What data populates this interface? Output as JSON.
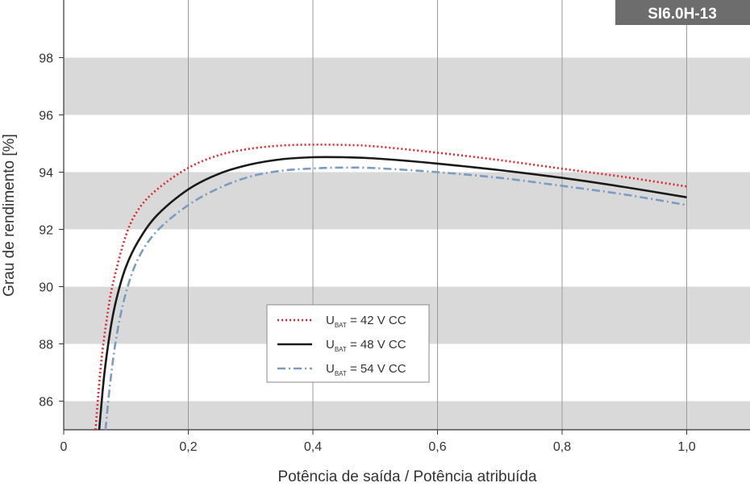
{
  "badge": "SI6.0H-13",
  "chart_data": {
    "type": "line",
    "title": "",
    "xlabel": "Potência de saída / Potência atribuída",
    "ylabel": "Grau de rendimento [%]",
    "xlim": [
      0,
      1.1
    ],
    "ylim": [
      85,
      99
    ],
    "x_ticks": [
      0,
      0.2,
      0.4,
      0.6,
      0.8,
      1.0
    ],
    "x_tick_labels": [
      "0",
      "0,2",
      "0,4",
      "0,6",
      "0,8",
      "1,0"
    ],
    "y_ticks": [
      86,
      88,
      90,
      92,
      94,
      96,
      98
    ],
    "y_tick_labels": [
      "86",
      "88",
      "90",
      "92",
      "94",
      "96",
      "98"
    ],
    "grid": {
      "vertical": true,
      "horizontal_bands": true
    },
    "legend_position": "center-left",
    "series": [
      {
        "name": "U",
        "subscript": "BAT",
        "suffix": " = 42 V CC",
        "color": "#e0262a",
        "style": "dotted",
        "x": [
          0.051,
          0.06,
          0.07,
          0.08,
          0.1,
          0.12,
          0.15,
          0.2,
          0.25,
          0.3,
          0.35,
          0.4,
          0.45,
          0.5,
          0.6,
          0.7,
          0.8,
          0.9,
          1.0
        ],
        "y": [
          85.0,
          87.3,
          89.0,
          90.2,
          91.8,
          92.7,
          93.4,
          94.15,
          94.6,
          94.82,
          94.93,
          94.96,
          94.95,
          94.9,
          94.68,
          94.42,
          94.12,
          93.83,
          93.5
        ]
      },
      {
        "name": "U",
        "subscript": "BAT",
        "suffix": " = 48 V CC",
        "color": "#1a1a1a",
        "style": "solid",
        "x": [
          0.057,
          0.065,
          0.075,
          0.085,
          0.1,
          0.12,
          0.15,
          0.2,
          0.25,
          0.3,
          0.35,
          0.4,
          0.45,
          0.5,
          0.6,
          0.7,
          0.8,
          0.9,
          1.0
        ],
        "y": [
          85.0,
          86.9,
          88.5,
          89.6,
          90.7,
          91.6,
          92.5,
          93.4,
          93.95,
          94.27,
          94.45,
          94.52,
          94.52,
          94.48,
          94.3,
          94.07,
          93.8,
          93.48,
          93.12
        ]
      },
      {
        "name": "U",
        "subscript": "BAT",
        "suffix": " = 54 V CC",
        "color": "#7a9bc4",
        "style": "dashdot",
        "x": [
          0.067,
          0.075,
          0.085,
          0.1,
          0.12,
          0.15,
          0.2,
          0.25,
          0.3,
          0.35,
          0.4,
          0.45,
          0.5,
          0.6,
          0.7,
          0.8,
          0.9,
          1.0
        ],
        "y": [
          85.0,
          86.7,
          88.3,
          89.8,
          91.0,
          91.95,
          92.85,
          93.45,
          93.85,
          94.05,
          94.13,
          94.16,
          94.14,
          94.0,
          93.8,
          93.52,
          93.22,
          92.85
        ]
      }
    ]
  },
  "colors": {
    "band": "#d9d9d9",
    "grid_line": "#9a9a9a",
    "axis": "#333333",
    "badge_bg": "#6d6d6d"
  }
}
